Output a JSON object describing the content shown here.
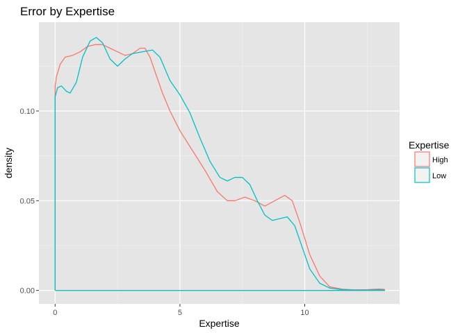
{
  "chart_data": {
    "type": "line",
    "title": "Error by Expertise",
    "xlabel": "Expertise",
    "ylabel": "density",
    "xlim": [
      -0.65,
      13.8
    ],
    "ylim": [
      -0.0075,
      0.1495
    ],
    "x_ticks": [
      0,
      5,
      10
    ],
    "x_tick_labels": [
      "0",
      "5",
      "10"
    ],
    "x_minor_ticks": [
      2.5,
      7.5,
      12.5
    ],
    "y_ticks": [
      0.0,
      0.05,
      0.1
    ],
    "y_tick_labels": [
      "0.00",
      "0.05",
      "0.10"
    ],
    "y_minor_ticks": [
      0.025,
      0.075,
      0.125
    ],
    "grid": true,
    "background": "#e5e5e5",
    "legend": {
      "title": "Expertise",
      "position": "right",
      "entries": [
        {
          "label": "High",
          "color": "#f8766d"
        },
        {
          "label": "Low",
          "color": "#00bfc4"
        }
      ]
    },
    "series": [
      {
        "name": "High",
        "color": "#f8766d",
        "points": [
          [
            0,
            0
          ],
          [
            0,
            0.114
          ],
          [
            0.05,
            0.119
          ],
          [
            0.2,
            0.126
          ],
          [
            0.4,
            0.13
          ],
          [
            0.7,
            0.131
          ],
          [
            1.0,
            0.133
          ],
          [
            1.3,
            0.136
          ],
          [
            1.6,
            0.137
          ],
          [
            1.9,
            0.137
          ],
          [
            2.2,
            0.135
          ],
          [
            2.5,
            0.133
          ],
          [
            2.8,
            0.131
          ],
          [
            3.1,
            0.132
          ],
          [
            3.4,
            0.135
          ],
          [
            3.6,
            0.135
          ],
          [
            3.8,
            0.13
          ],
          [
            4.0,
            0.122
          ],
          [
            4.3,
            0.11
          ],
          [
            4.6,
            0.1
          ],
          [
            5.0,
            0.089
          ],
          [
            5.5,
            0.078
          ],
          [
            6.0,
            0.067
          ],
          [
            6.5,
            0.055
          ],
          [
            6.9,
            0.05
          ],
          [
            7.2,
            0.05
          ],
          [
            7.6,
            0.052
          ],
          [
            8.0,
            0.05
          ],
          [
            8.4,
            0.047
          ],
          [
            8.8,
            0.05
          ],
          [
            9.2,
            0.053
          ],
          [
            9.5,
            0.05
          ],
          [
            9.8,
            0.038
          ],
          [
            10.2,
            0.02
          ],
          [
            10.6,
            0.008
          ],
          [
            11.0,
            0.002
          ],
          [
            11.5,
            0.0007
          ],
          [
            12.0,
            0.0003
          ],
          [
            12.5,
            0.0004
          ],
          [
            13.0,
            0.0008
          ],
          [
            13.2,
            0.0005
          ],
          [
            13.2,
            0
          ],
          [
            0,
            0
          ]
        ]
      },
      {
        "name": "Low",
        "color": "#00bfc4",
        "points": [
          [
            0,
            0
          ],
          [
            0,
            0.108
          ],
          [
            0.1,
            0.113
          ],
          [
            0.25,
            0.114
          ],
          [
            0.45,
            0.111
          ],
          [
            0.6,
            0.11
          ],
          [
            0.85,
            0.116
          ],
          [
            1.1,
            0.13
          ],
          [
            1.4,
            0.139
          ],
          [
            1.65,
            0.141
          ],
          [
            1.9,
            0.138
          ],
          [
            2.2,
            0.129
          ],
          [
            2.5,
            0.125
          ],
          [
            2.8,
            0.129
          ],
          [
            3.1,
            0.132
          ],
          [
            3.5,
            0.133
          ],
          [
            3.9,
            0.134
          ],
          [
            4.2,
            0.13
          ],
          [
            4.6,
            0.117
          ],
          [
            5.0,
            0.109
          ],
          [
            5.4,
            0.099
          ],
          [
            5.8,
            0.085
          ],
          [
            6.2,
            0.072
          ],
          [
            6.6,
            0.063
          ],
          [
            6.9,
            0.061
          ],
          [
            7.2,
            0.063
          ],
          [
            7.5,
            0.063
          ],
          [
            7.8,
            0.059
          ],
          [
            8.1,
            0.05
          ],
          [
            8.4,
            0.042
          ],
          [
            8.7,
            0.039
          ],
          [
            9.0,
            0.04
          ],
          [
            9.3,
            0.041
          ],
          [
            9.6,
            0.036
          ],
          [
            9.9,
            0.024
          ],
          [
            10.2,
            0.012
          ],
          [
            10.6,
            0.004
          ],
          [
            11.0,
            0.0013
          ],
          [
            11.5,
            0.0004
          ],
          [
            12.0,
            0.0002
          ],
          [
            12.5,
            0.0002
          ],
          [
            13.0,
            0.0003
          ],
          [
            13.2,
            0.0002
          ],
          [
            13.2,
            0
          ],
          [
            0,
            0
          ]
        ]
      }
    ]
  }
}
